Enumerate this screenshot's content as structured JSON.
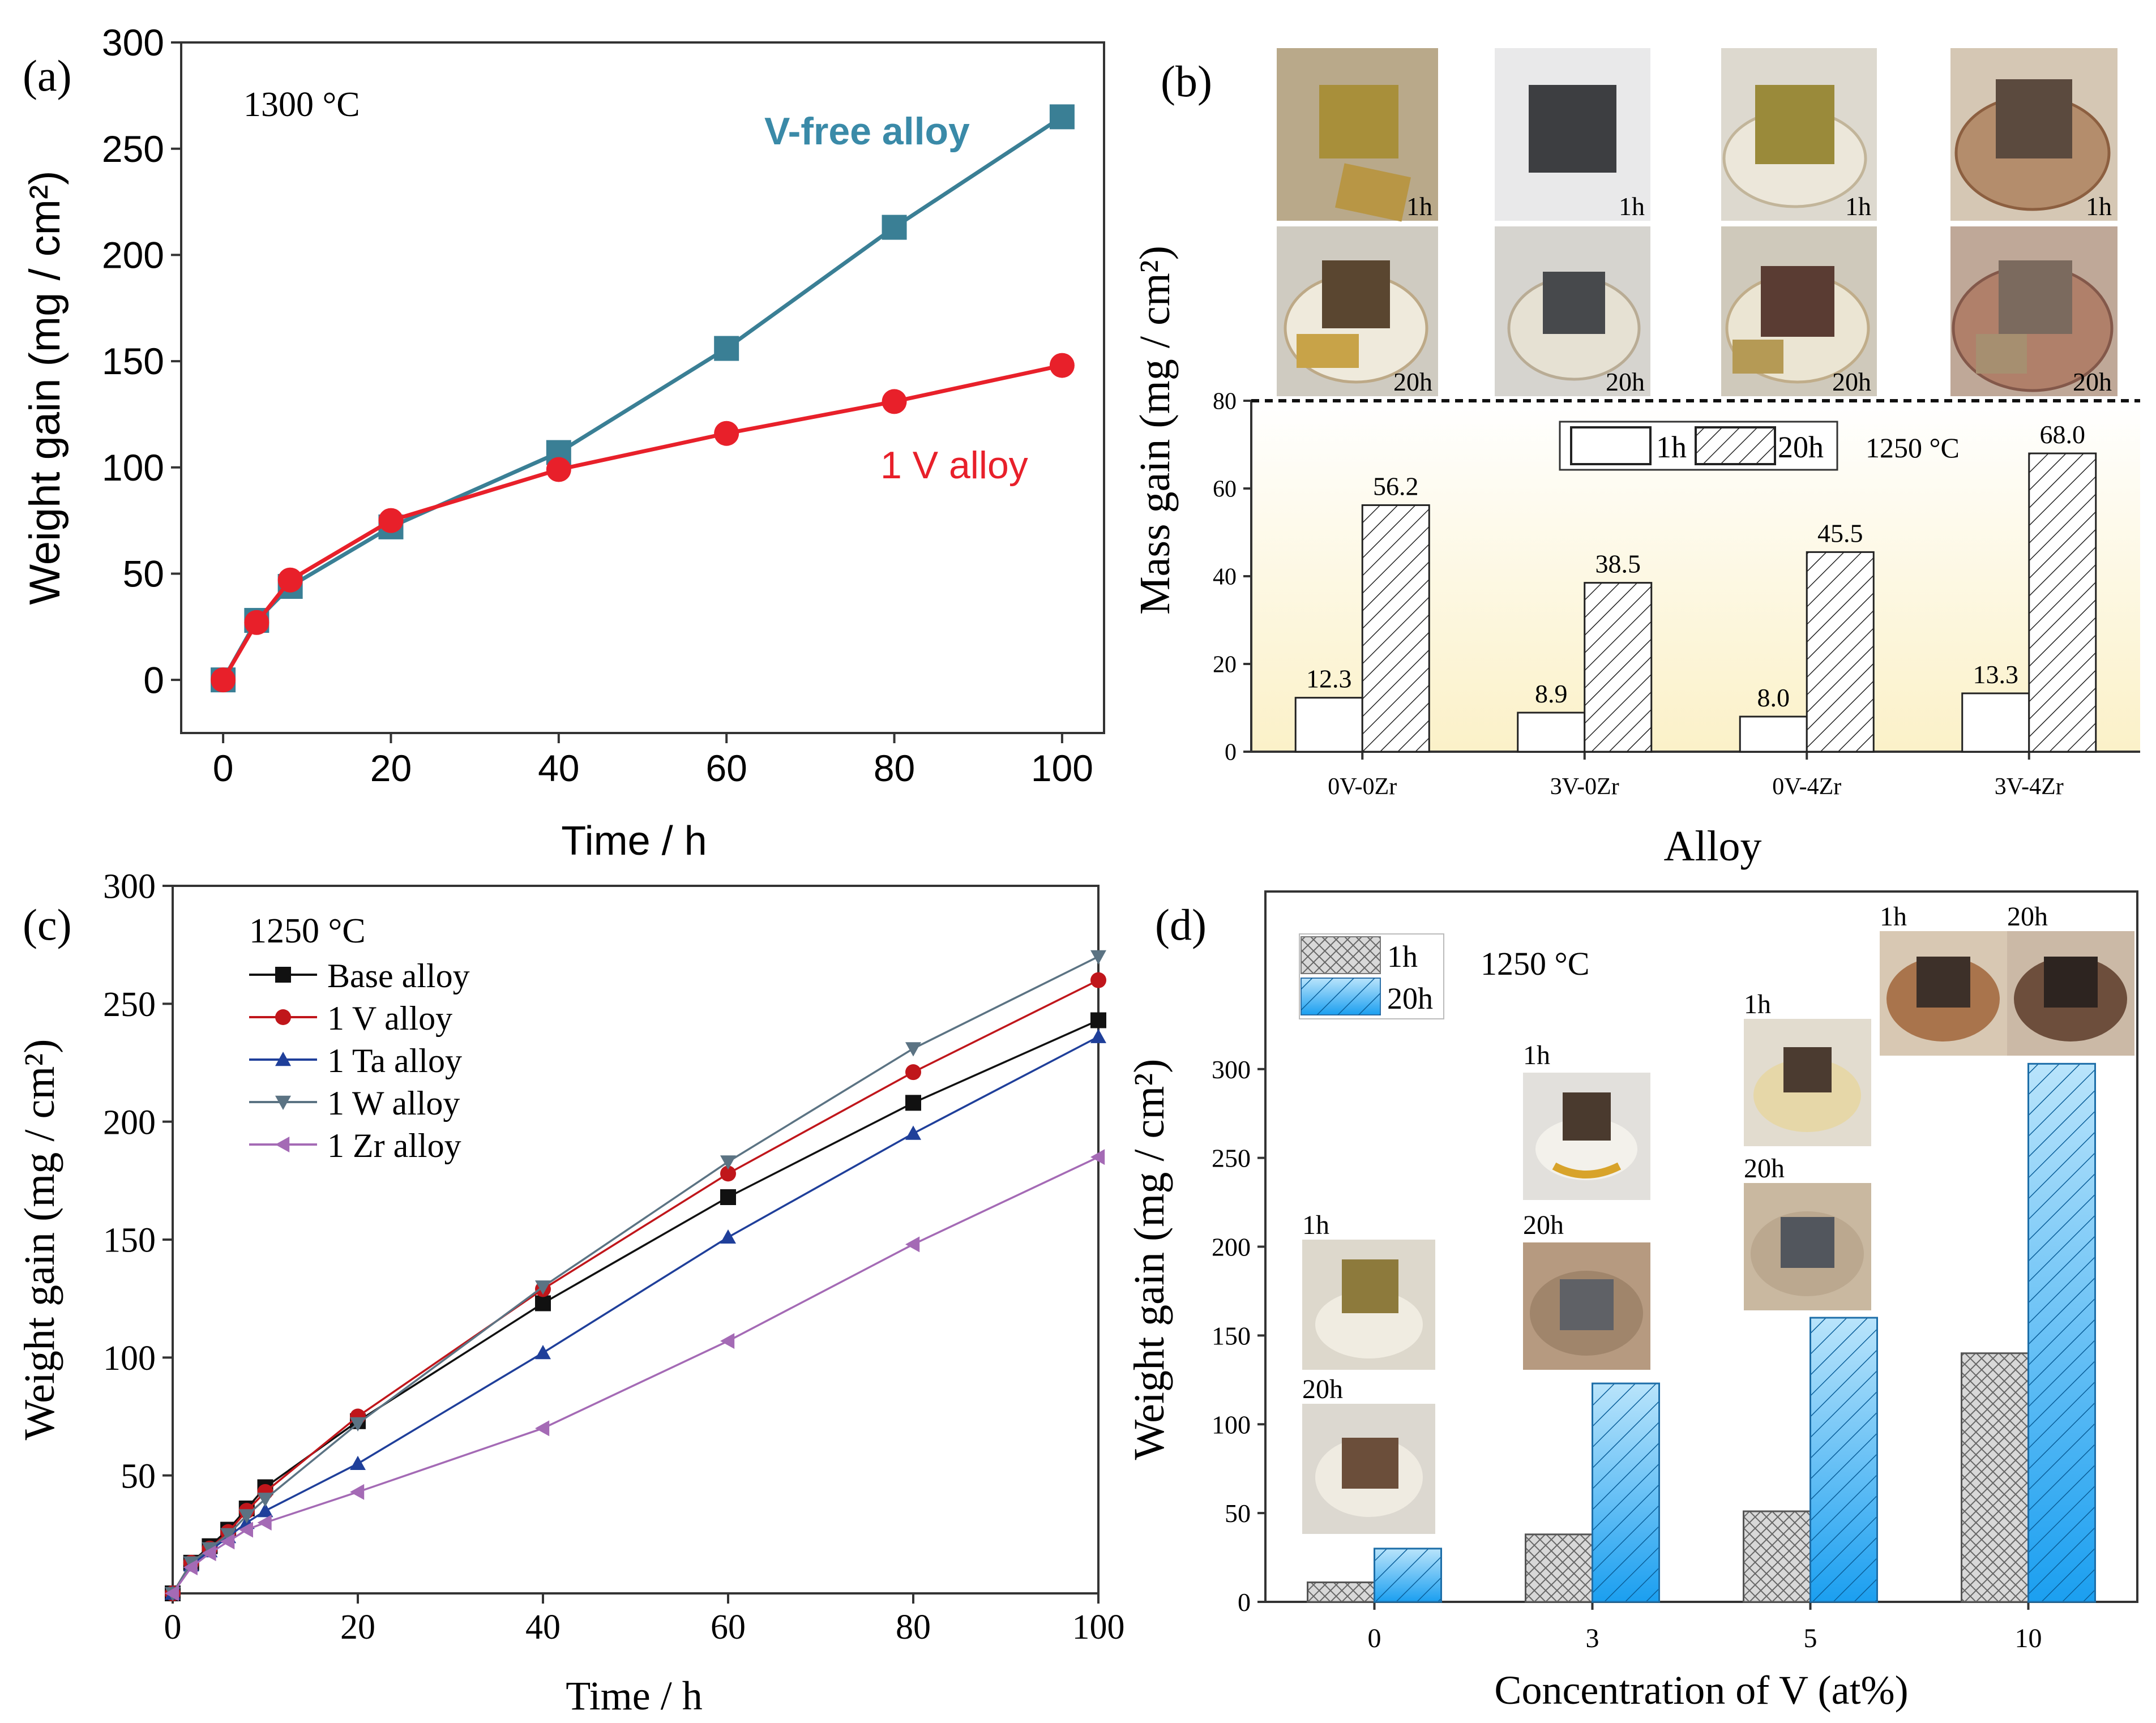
{
  "chart_data": [
    {
      "id": "a",
      "type": "line",
      "panel_label": "(a)",
      "annotation": "1300 °C",
      "xlabel": "Time / h",
      "ylabel": "Weight gain (mg / cm²)",
      "xlim": [
        -5,
        105
      ],
      "ylim": [
        -25,
        300
      ],
      "xticks": [
        0,
        20,
        40,
        60,
        80,
        100
      ],
      "yticks": [
        0,
        50,
        100,
        150,
        200,
        250,
        300
      ],
      "series": [
        {
          "name": "V-free alloy",
          "color": "#3a7f95",
          "marker": "square",
          "x": [
            0,
            4,
            8,
            20,
            40,
            60,
            80,
            100
          ],
          "y": [
            0,
            28,
            44,
            72,
            107,
            156,
            213,
            265
          ]
        },
        {
          "name": "1 V alloy",
          "color": "#e8202a",
          "marker": "circle",
          "x": [
            0,
            4,
            8,
            20,
            40,
            60,
            80,
            100
          ],
          "y": [
            0,
            27,
            47,
            75,
            99,
            116,
            131,
            148
          ]
        }
      ]
    },
    {
      "id": "b",
      "type": "bar",
      "panel_label": "(b)",
      "annotation": "1250 °C",
      "xlabel": "Alloy",
      "ylabel": "Mass gain (mg / cm²)",
      "ylim": [
        0,
        80
      ],
      "yticks": [
        0,
        20,
        40,
        60,
        80
      ],
      "categories": [
        "0V-0Zr",
        "3V-0Zr",
        "0V-4Zr",
        "3V-4Zr"
      ],
      "series": [
        {
          "name": "1h",
          "pattern": "plain",
          "values": [
            12.3,
            8.9,
            8.0,
            13.3
          ],
          "labels": [
            "12.3",
            "8.9",
            "8.0",
            "13.3"
          ]
        },
        {
          "name": "20h",
          "pattern": "hatch",
          "values": [
            56.2,
            38.5,
            45.5,
            68.0
          ],
          "labels": [
            "56.2",
            "38.5",
            "45.5",
            "68.0"
          ]
        }
      ],
      "photo_labels": [
        "1h",
        "20h"
      ]
    },
    {
      "id": "c",
      "type": "line",
      "panel_label": "(c)",
      "annotation": "1250 °C",
      "xlabel": "Time / h",
      "ylabel": "Weight gain (mg / cm²)",
      "xlim": [
        0,
        100
      ],
      "ylim": [
        0,
        300
      ],
      "xticks": [
        0,
        20,
        40,
        60,
        80,
        100
      ],
      "yticks": [
        50,
        100,
        150,
        200,
        250,
        300
      ],
      "series": [
        {
          "name": "Base alloy",
          "color": "#111111",
          "marker": "square",
          "x": [
            0,
            2,
            4,
            6,
            8,
            10,
            20,
            40,
            60,
            80,
            100
          ],
          "y": [
            0,
            13,
            20,
            27,
            36,
            45,
            73,
            123,
            168,
            208,
            243
          ]
        },
        {
          "name": "1 V alloy",
          "color": "#c0161b",
          "marker": "circle",
          "x": [
            0,
            2,
            4,
            6,
            8,
            10,
            20,
            40,
            60,
            80,
            100
          ],
          "y": [
            0,
            13,
            19,
            26,
            35,
            43,
            75,
            129,
            178,
            221,
            260
          ]
        },
        {
          "name": "1 Ta alloy",
          "color": "#1f3f9a",
          "marker": "triangle-up",
          "x": [
            0,
            2,
            4,
            6,
            8,
            10,
            20,
            40,
            60,
            80,
            100
          ],
          "y": [
            0,
            12,
            18,
            24,
            30,
            35,
            55,
            102,
            151,
            195,
            236
          ]
        },
        {
          "name": "1 W alloy",
          "color": "#5b7383",
          "marker": "triangle-down",
          "x": [
            0,
            2,
            4,
            6,
            8,
            10,
            20,
            40,
            60,
            80,
            100
          ],
          "y": [
            0,
            13,
            19,
            25,
            33,
            40,
            72,
            130,
            183,
            231,
            270
          ]
        },
        {
          "name": "1 Zr alloy",
          "color": "#a46ab5",
          "marker": "triangle-left",
          "x": [
            0,
            2,
            4,
            6,
            8,
            10,
            20,
            40,
            60,
            80,
            100
          ],
          "y": [
            0,
            11,
            17,
            22,
            27,
            30,
            43,
            70,
            107,
            148,
            185
          ]
        }
      ]
    },
    {
      "id": "d",
      "type": "bar",
      "panel_label": "(d)",
      "annotation": "1250 °C",
      "xlabel": "Concentration of  V (at%)",
      "ylabel": "Weight gain (mg / cm²)",
      "ylim": [
        0,
        400
      ],
      "yticks": [
        0,
        50,
        100,
        150,
        200,
        250,
        300
      ],
      "categories": [
        "0",
        "3",
        "5",
        "10"
      ],
      "series": [
        {
          "name": "1h",
          "pattern": "crosshatch-grey",
          "values": [
            11,
            38,
            51,
            140
          ]
        },
        {
          "name": "20h",
          "pattern": "hatch-blue",
          "values": [
            30,
            123,
            160,
            303
          ]
        }
      ],
      "photo_labels": [
        "1h",
        "20h"
      ]
    }
  ]
}
